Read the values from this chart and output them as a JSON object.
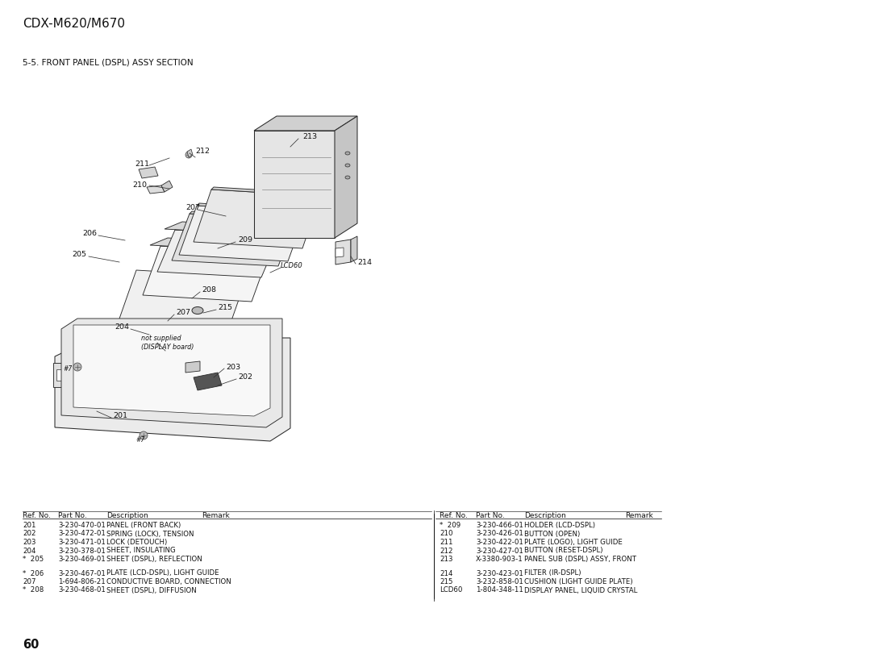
{
  "page_title": "CDX-M620/M670",
  "section_title": "5-5. FRONT PANEL (DSPL) ASSY SECTION",
  "page_number": "60",
  "bg_color": "#ffffff",
  "table_left": {
    "headers": [
      "Ref. No.",
      "Part No.",
      "Description",
      "Remark"
    ],
    "group1": [
      [
        "201",
        "3-230-470-01",
        "PANEL (FRONT BACK)",
        ""
      ],
      [
        "202",
        "3-230-472-01",
        "SPRING (LOCK), TENSION",
        ""
      ],
      [
        "203",
        "3-230-471-01",
        "LOCK (DETOUCH)",
        ""
      ],
      [
        "204",
        "3-230-378-01",
        "SHEET, INSULATING",
        ""
      ],
      [
        "*  205",
        "3-230-469-01",
        "SHEET (DSPL), REFLECTION",
        ""
      ]
    ],
    "group2": [
      [
        "*  206",
        "3-230-467-01",
        "PLATE (LCD-DSPL), LIGHT GUIDE",
        ""
      ],
      [
        "207",
        "1-694-806-21",
        "CONDUCTIVE BOARD, CONNECTION",
        ""
      ],
      [
        "*  208",
        "3-230-468-01",
        "SHEET (DSPL), DIFFUSION",
        ""
      ]
    ]
  },
  "table_right": {
    "headers": [
      "Ref. No.",
      "Part No.",
      "Description",
      "Remark"
    ],
    "group1": [
      [
        "*  209",
        "3-230-466-01",
        "HOLDER (LCD-DSPL)",
        ""
      ],
      [
        "210",
        "3-230-426-01",
        "BUTTON (OPEN)",
        ""
      ],
      [
        "211",
        "3-230-422-01",
        "PLATE (LOGO), LIGHT GUIDE",
        ""
      ],
      [
        "212",
        "3-230-427-01",
        "BUTTON (RESET-DSPL)",
        ""
      ],
      [
        "213",
        "X-3380-903-1",
        "PANEL SUB (DSPL) ASSY, FRONT",
        ""
      ]
    ],
    "group2": [
      [
        "214",
        "3-230-423-01",
        "FILTER (IR-DSPL)",
        ""
      ],
      [
        "215",
        "3-232-858-01",
        "CUSHION (LIGHT GUIDE PLATE)",
        ""
      ],
      [
        "LCD60",
        "1-804-348-11",
        "DISPLAY PANEL, LIQUID CRYSTAL",
        ""
      ]
    ]
  }
}
